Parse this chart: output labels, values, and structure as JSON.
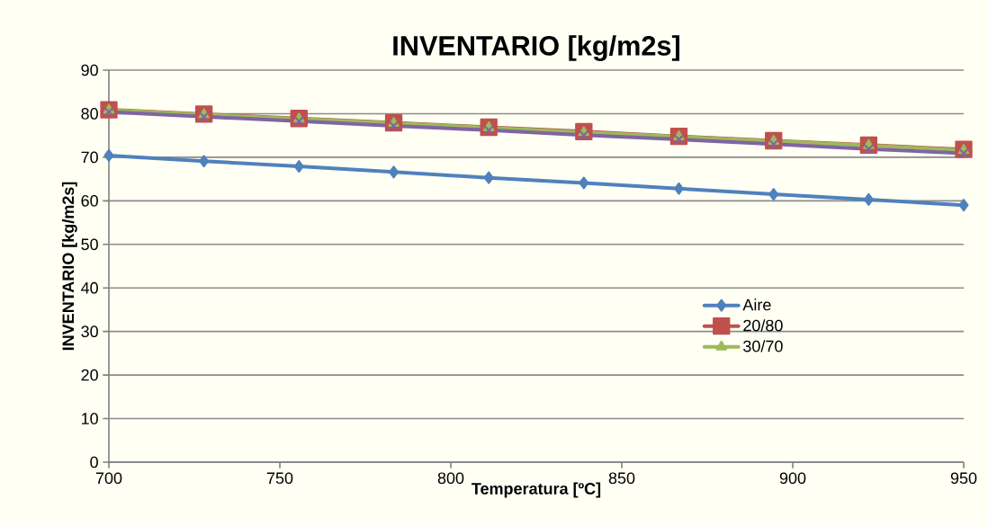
{
  "chart_data": {
    "type": "line",
    "title": "INVENTARIO [kg/m2s]",
    "xlabel": "Temperatura [ºC]",
    "ylabel": "INVENTARIO [kg/m2s]",
    "x": [
      700,
      727.8,
      755.6,
      783.3,
      811.1,
      838.9,
      866.7,
      894.4,
      922.2,
      950
    ],
    "series": [
      {
        "name": "Aire",
        "color": "#4f81bd",
        "marker": "diamond",
        "values": [
          70.4,
          69.1,
          67.9,
          66.6,
          65.3,
          64.1,
          62.8,
          61.5,
          60.3,
          59.0
        ]
      },
      {
        "name": "20/80",
        "color": "#c0504d",
        "marker": "square",
        "values": [
          80.9,
          79.9,
          78.9,
          77.9,
          76.9,
          75.9,
          74.8,
          73.8,
          72.8,
          71.8
        ]
      },
      {
        "name": "30/70",
        "color": "#9bbb59",
        "marker": "triangle",
        "values": [
          80.8,
          79.8,
          78.8,
          77.8,
          76.8,
          75.7,
          74.7,
          73.7,
          72.7,
          71.6
        ]
      },
      {
        "color": "#8064a2",
        "marker": "cross",
        "values": [
          80.4,
          79.3,
          78.3,
          77.2,
          76.2,
          75.1,
          74.1,
          73.0,
          71.9,
          70.9
        ]
      }
    ],
    "xlim": [
      700,
      950
    ],
    "ylim": [
      0,
      90
    ],
    "xticks": [
      700,
      750,
      800,
      850,
      900,
      950
    ],
    "yticks": [
      0,
      10,
      20,
      30,
      40,
      50,
      60,
      70,
      80,
      90
    ],
    "grid": "y",
    "legend": "center right",
    "line_style": "solid"
  }
}
